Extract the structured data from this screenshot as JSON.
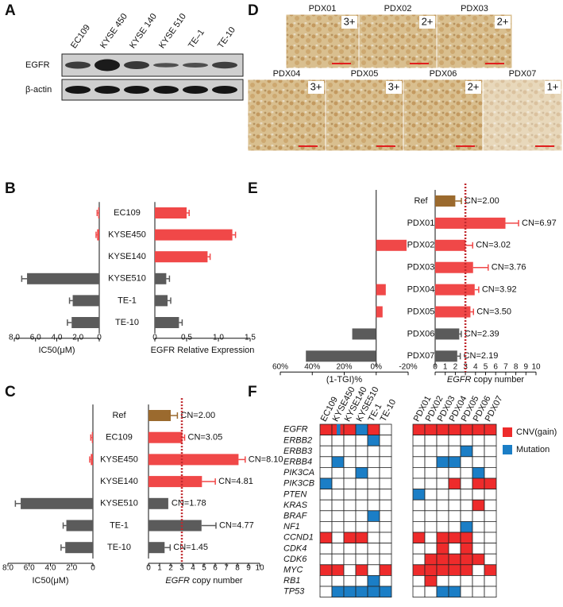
{
  "panel_letters": [
    "A",
    "B",
    "C",
    "D",
    "E",
    "F"
  ],
  "blot": {
    "lanes": [
      "EC109",
      "KYSE 450",
      "KYSE 140",
      "KYSE 510",
      "TE–1",
      "TE-10"
    ],
    "rows": [
      "EGFR",
      "β-actin"
    ]
  },
  "ihc": [
    {
      "label": "PDX01",
      "score": "3+"
    },
    {
      "label": "PDX02",
      "score": "2+"
    },
    {
      "label": "PDX03",
      "score": "2+"
    },
    {
      "label": "PDX04",
      "score": "3+"
    },
    {
      "label": "PDX05",
      "score": "3+"
    },
    {
      "label": "PDX06",
      "score": "2+"
    },
    {
      "label": "PDX07",
      "score": "1+"
    }
  ],
  "chart_data": [
    {
      "type": "paired_bar",
      "categories": [
        "EC109",
        "KYSE450",
        "KYSE140",
        "KYSE510",
        "TE-1",
        "TE-10"
      ],
      "left": {
        "xlabel": "IC50(μM)",
        "xlim": [
          8,
          0
        ],
        "xticks": [
          {
            "value": 8,
            "label": "8.0"
          },
          {
            "value": 6,
            "label": "6.0"
          },
          {
            "value": 4,
            "label": "4.0"
          },
          {
            "value": 2,
            "label": "2.0"
          },
          0
        ],
        "values": [
          0.1,
          0.2,
          0,
          6.8,
          2.5,
          2.6
        ],
        "errors": [
          0.1,
          0.1,
          null,
          0.5,
          0.3,
          0.4
        ],
        "colors": [
          "#f04848",
          "#f04848",
          "#f04848",
          "#5b5b5b",
          "#5b5b5b",
          "#5b5b5b"
        ]
      },
      "right": {
        "xlabel": "EGFR Relative Expression",
        "xlim": [
          0,
          1.5
        ],
        "xticks": [
          0,
          0.5,
          {
            "value": 1,
            "label": "1.0"
          },
          1.5
        ],
        "values": [
          0.5,
          1.22,
          0.83,
          0.18,
          0.2,
          0.38
        ],
        "errors": [
          0.04,
          0.05,
          0.04,
          0.05,
          0.05,
          0.05
        ],
        "colors": [
          "#f04848",
          "#f04848",
          "#f04848",
          "#5b5b5b",
          "#5b5b5b",
          "#5b5b5b"
        ]
      }
    },
    {
      "type": "paired_bar",
      "categories": [
        "Ref",
        "EC109",
        "KYSE450",
        "KYSE140",
        "KYSE510",
        "TE-1",
        "TE-10"
      ],
      "left": {
        "xlabel": "IC50(μM)",
        "xlim": [
          8,
          0
        ],
        "xticks": [
          {
            "value": 8,
            "label": "8.0"
          },
          {
            "value": 6,
            "label": "6.0"
          },
          {
            "value": 4,
            "label": "4.0"
          },
          {
            "value": 2,
            "label": "2.0"
          },
          0
        ],
        "values": [
          null,
          0.1,
          0.2,
          0,
          6.8,
          2.5,
          2.6
        ],
        "errors": [
          null,
          0.1,
          0.1,
          null,
          0.5,
          0.3,
          0.4
        ],
        "colors": [
          null,
          "#f04848",
          "#f04848",
          "#f04848",
          "#5b5b5b",
          "#5b5b5b",
          "#5b5b5b"
        ]
      },
      "right": {
        "xlabel_gene": "EGFR",
        "xlabel": " copy number",
        "xlim": [
          0,
          10
        ],
        "xticks": [
          0,
          1,
          2,
          3,
          4,
          5,
          6,
          7,
          8,
          9,
          10
        ],
        "values": [
          2.0,
          3.05,
          8.1,
          4.81,
          1.78,
          4.77,
          1.45
        ],
        "value_labels": [
          "CN=2.00",
          "CN=3.05",
          "CN=8.10",
          "CN=4.81",
          "CN=1.78",
          "CN=4.77",
          "CN=1.45"
        ],
        "errors": [
          0.6,
          0.2,
          0.6,
          1.2,
          null,
          1.3,
          0.5
        ],
        "colors": [
          "#9b6a2e",
          "#f04848",
          "#f04848",
          "#f04848",
          "#5b5b5b",
          "#5b5b5b",
          "#5b5b5b"
        ],
        "ref_line": {
          "value": 3,
          "color": "#c0282d"
        }
      }
    },
    {
      "type": "paired_bar",
      "categories": [
        "Ref",
        "PDX01",
        "PDX02",
        "PDX03",
        "PDX04",
        "PDX05",
        "PDX06",
        "PDX07"
      ],
      "left": {
        "xlabel": "(1-TGI)%",
        "xlim": [
          60,
          -20
        ],
        "xticks": [
          {
            "value": 60,
            "label": "60%"
          },
          {
            "value": 40,
            "label": "40%"
          },
          {
            "value": 20,
            "label": "20%"
          },
          {
            "value": 0,
            "label": "0%"
          },
          {
            "value": -20,
            "label": "-20%"
          }
        ],
        "values": [
          null,
          null,
          -19,
          null,
          -6,
          -4,
          15,
          44
        ],
        "errors": [
          null,
          null,
          null,
          null,
          null,
          null,
          null,
          null
        ],
        "colors": [
          null,
          null,
          "#f04848",
          null,
          "#f04848",
          "#f04848",
          "#5b5b5b",
          "#5b5b5b"
        ]
      },
      "right": {
        "xlabel_gene": "EGFR",
        "xlabel": " copy number",
        "xlim": [
          0,
          10
        ],
        "xticks": [
          0,
          1,
          2,
          3,
          4,
          5,
          6,
          7,
          8,
          9,
          10
        ],
        "values": [
          2.0,
          6.97,
          3.02,
          3.76,
          3.92,
          3.5,
          2.39,
          2.19
        ],
        "value_labels": [
          "CN=2.00",
          "CN=6.97",
          "CN=3.02",
          "CN=3.76",
          "CN=3.92",
          "CN=3.50",
          "CN=2.39",
          "CN=2.19"
        ],
        "errors": [
          0.6,
          1.3,
          0.7,
          1.5,
          0.4,
          0.3,
          0.2,
          0.3
        ],
        "colors": [
          "#9b6a2e",
          "#f04848",
          "#f04848",
          "#f04848",
          "#f04848",
          "#f04848",
          "#5b5b5b",
          "#5b5b5b"
        ],
        "ref_line": {
          "value": 3,
          "color": "#c0282d"
        }
      }
    },
    {
      "type": "heatmap",
      "column_groups": [
        [
          "EC109",
          "KYSE450",
          "KYSE140",
          "KYSE510",
          "TE-1",
          "TE-10"
        ],
        [
          "PDX01",
          "PDX02",
          "PDX03",
          "PDX04",
          "PDX05",
          "PDX06",
          "PDX07"
        ]
      ],
      "rows": [
        "EGFR",
        "ERBB2",
        "ERBB3",
        "ERBB4",
        "PIK3CA",
        "PIK3CB",
        "PTEN",
        "KRAS",
        "BRAF",
        "NF1",
        "CCND1",
        "CDK4",
        "CDK6",
        "MYC",
        "RB1",
        "TP53"
      ],
      "legend": [
        {
          "name": "CNV(gain)",
          "color": "#ee2b2b",
          "code": 1
        },
        {
          "name": "Mutation",
          "color": "#1b7ec6",
          "code": 2
        }
      ],
      "values": [
        [
          1,
          3,
          1,
          2,
          1,
          0,
          1,
          1,
          1,
          1,
          1,
          1,
          1
        ],
        [
          0,
          0,
          0,
          0,
          2,
          0,
          0,
          0,
          0,
          0,
          0,
          0,
          0
        ],
        [
          0,
          0,
          0,
          0,
          0,
          0,
          0,
          0,
          0,
          0,
          2,
          0,
          0
        ],
        [
          0,
          2,
          0,
          0,
          0,
          0,
          0,
          0,
          2,
          2,
          0,
          0,
          0
        ],
        [
          0,
          0,
          0,
          2,
          0,
          0,
          0,
          0,
          0,
          0,
          0,
          2,
          0
        ],
        [
          2,
          0,
          0,
          0,
          0,
          0,
          0,
          0,
          0,
          1,
          0,
          1,
          1
        ],
        [
          0,
          0,
          0,
          0,
          0,
          0,
          2,
          0,
          0,
          0,
          0,
          0,
          0
        ],
        [
          0,
          0,
          0,
          0,
          0,
          0,
          0,
          0,
          0,
          0,
          0,
          1,
          0
        ],
        [
          0,
          0,
          0,
          0,
          2,
          0,
          0,
          0,
          0,
          0,
          0,
          0,
          0
        ],
        [
          0,
          0,
          0,
          0,
          0,
          0,
          0,
          0,
          0,
          0,
          2,
          0,
          0
        ],
        [
          1,
          0,
          1,
          1,
          0,
          0,
          1,
          0,
          1,
          1,
          1,
          0,
          0
        ],
        [
          0,
          0,
          0,
          0,
          0,
          0,
          0,
          0,
          1,
          0,
          1,
          0,
          0
        ],
        [
          0,
          0,
          0,
          0,
          0,
          0,
          0,
          1,
          1,
          1,
          1,
          1,
          0
        ],
        [
          1,
          1,
          0,
          1,
          0,
          1,
          1,
          1,
          1,
          1,
          1,
          0,
          1
        ],
        [
          0,
          0,
          0,
          0,
          2,
          0,
          0,
          1,
          0,
          0,
          0,
          0,
          0
        ],
        [
          0,
          2,
          2,
          2,
          2,
          2,
          0,
          0,
          2,
          2,
          0,
          0,
          0
        ]
      ]
    }
  ]
}
